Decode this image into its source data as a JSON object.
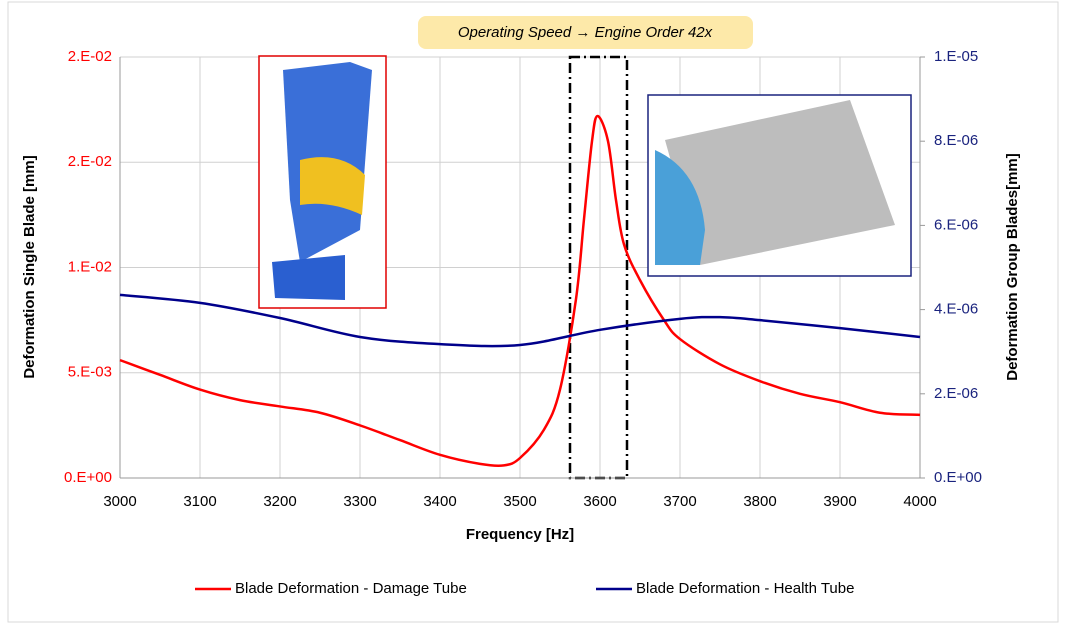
{
  "chart_data": {
    "type": "line",
    "annotation": "Operating Speed → Engine Order 42x",
    "x_label": "Frequency [Hz]",
    "y_label": "Deformation Single Blade [mm]",
    "y2_label": "Deformation Group Blades[mm]",
    "xlim": [
      3000,
      4000
    ],
    "xticks": [
      3000,
      3100,
      3200,
      3300,
      3400,
      3500,
      3600,
      3700,
      3800,
      3900,
      4000
    ],
    "ylim": [
      0,
      0.02
    ],
    "yticks": [
      {
        "value": 0,
        "label": "0.E+00"
      },
      {
        "value": 0.005,
        "label": "5.E-03"
      },
      {
        "value": 0.01,
        "label": "1.E-02"
      },
      {
        "value": 0.015,
        "label": "2.E-02"
      },
      {
        "value": 0.02,
        "label": "2.E-02"
      }
    ],
    "y2lim": [
      0,
      1e-05
    ],
    "y2ticks": [
      {
        "value": 0,
        "label": "0.E+00"
      },
      {
        "value": 2e-06,
        "label": "2.E-06"
      },
      {
        "value": 4e-06,
        "label": "4.E-06"
      },
      {
        "value": 6e-06,
        "label": "6.E-06"
      },
      {
        "value": 8e-06,
        "label": "8.E-06"
      },
      {
        "value": 1e-05,
        "label": "1.E-05"
      }
    ],
    "grid": true,
    "legend": "bottom",
    "series": [
      {
        "name": "Blade Deformation - Damage Tube",
        "color": "#ff0000",
        "axis": "y",
        "x": [
          3000,
          3050,
          3100,
          3150,
          3200,
          3250,
          3300,
          3350,
          3400,
          3450,
          3480,
          3500,
          3530,
          3550,
          3570,
          3580,
          3590,
          3597,
          3610,
          3620,
          3630,
          3650,
          3680,
          3700,
          3750,
          3800,
          3850,
          3900,
          3950,
          4000
        ],
        "values": [
          0.0056,
          0.0049,
          0.0042,
          0.0037,
          0.0034,
          0.0031,
          0.0025,
          0.0018,
          0.0011,
          0.00067,
          0.0006,
          0.00095,
          0.0023,
          0.0042,
          0.0085,
          0.0123,
          0.016,
          0.0172,
          0.016,
          0.0132,
          0.0111,
          0.0094,
          0.0075,
          0.0066,
          0.0054,
          0.0046,
          0.004,
          0.0036,
          0.0031,
          0.003
        ]
      },
      {
        "name": "Blade Deformation - Health Tube",
        "color": "#00008b",
        "axis": "y2",
        "x": [
          3000,
          3100,
          3200,
          3300,
          3400,
          3500,
          3600,
          3700,
          3750,
          3800,
          3900,
          4000
        ],
        "values": [
          4.35e-06,
          4.16e-06,
          3.8e-06,
          3.35e-06,
          3.18e-06,
          3.16e-06,
          3.52e-06,
          3.78e-06,
          3.82e-06,
          3.75e-06,
          3.56e-06,
          3.35e-06
        ]
      }
    ]
  }
}
